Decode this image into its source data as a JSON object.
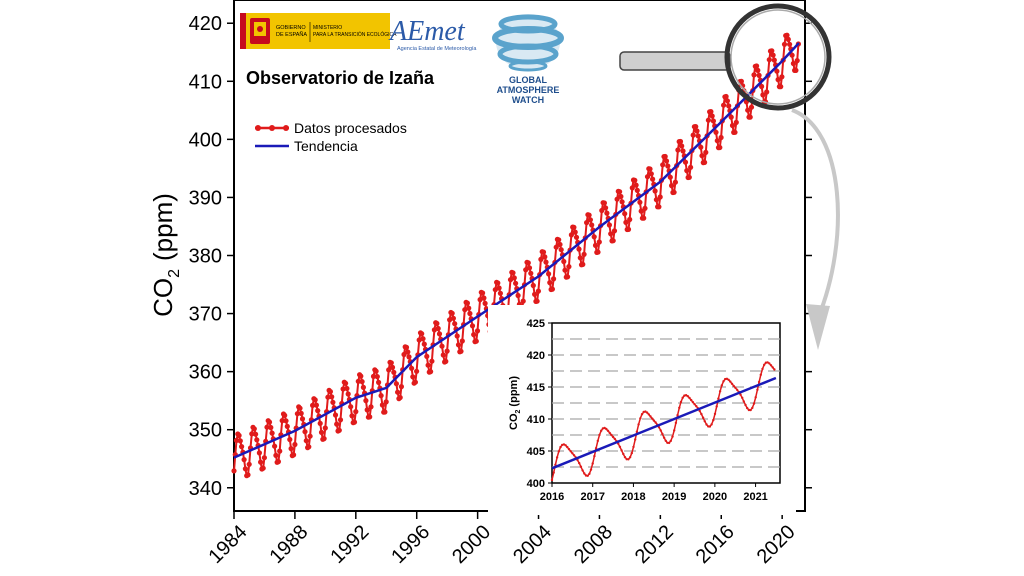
{
  "header": {
    "gov_line1": "GOBIERNO",
    "gov_line2": "DE ESPAÑA",
    "ministry_line1": "MINISTERIO",
    "ministry_line2": "PARA LA TRANSICIÓN ECOLÓGICA",
    "aemet_logo": "AEmet",
    "aemet_subtitle": "Agencia Estatal de Meteorología",
    "observatory": "Observatorio de Izaña",
    "gaw_line1": "GLOBAL",
    "gaw_line2": "ATMOSPHERE",
    "gaw_line3": "WATCH"
  },
  "colors": {
    "data": "#e01b1b",
    "trend": "#1a1ab8",
    "gov_yellow": "#f2c400",
    "grid": "#a8a8a8",
    "arrow": "#c8c8c8"
  },
  "chart_data": [
    {
      "type": "line",
      "title": "Observatorio de Izaña",
      "xlabel": "",
      "ylabel_main": "CO",
      "ylabel_sub": "2",
      "ylabel_units": "(ppm)",
      "xlim": [
        1984,
        2021.5
      ],
      "ylim": [
        336,
        424
      ],
      "xticks": [
        1984,
        1988,
        1992,
        1996,
        2000,
        2004,
        2008,
        2012,
        2016,
        2020
      ],
      "yticks": [
        340,
        350,
        360,
        370,
        380,
        390,
        400,
        410,
        420
      ],
      "legend_position": "top-left",
      "series": [
        {
          "name": "Datos procesados",
          "style": "line-markers",
          "x_start": 1984.0,
          "x_end": 2021.1,
          "x_step": 0.0833,
          "trend": [
            [
              1984,
              345.2
            ],
            [
              1988,
              349.8
            ],
            [
              1992,
              355.5
            ],
            [
              1994,
              357.2
            ],
            [
              1996,
              362.5
            ],
            [
              2000,
              369.5
            ],
            [
              2004,
              376.4
            ],
            [
              2008,
              384.9
            ],
            [
              2012,
              392.7
            ],
            [
              2016,
              403.0
            ],
            [
              2020,
              413.5
            ],
            [
              2021.1,
              416.6
            ]
          ],
          "seasonal_amplitude": 7.5
        },
        {
          "name": "Tendencia",
          "style": "line",
          "points": [
            [
              1984,
              345.2
            ],
            [
              1988,
              349.8
            ],
            [
              1992,
              355.5
            ],
            [
              1994,
              357.2
            ],
            [
              1996,
              362.5
            ],
            [
              2000,
              369.5
            ],
            [
              2004,
              376.4
            ],
            [
              2008,
              384.9
            ],
            [
              2012,
              392.7
            ],
            [
              2016,
              403.0
            ],
            [
              2020,
              413.5
            ],
            [
              2021.1,
              416.6
            ]
          ]
        }
      ]
    },
    {
      "type": "line",
      "title": "",
      "xlabel": "",
      "ylabel_main": "CO",
      "ylabel_sub": "2",
      "ylabel_units": "(ppm)",
      "xlim": [
        2016,
        2021.6
      ],
      "ylim": [
        400,
        425
      ],
      "xticks": [
        2016,
        2017,
        2018,
        2019,
        2020,
        2021
      ],
      "yticks": [
        400,
        405,
        410,
        415,
        420,
        425
      ],
      "grid": true,
      "series": [
        {
          "name": "Datos procesados",
          "x_start": 2016.0,
          "x_end": 2021.5,
          "x_step": 0.0417,
          "trend": [
            [
              2016,
              402.3
            ],
            [
              2021.5,
              416.4
            ]
          ],
          "seasonal_amplitude": 6.0
        },
        {
          "name": "Tendencia",
          "points": [
            [
              2016,
              402.3
            ],
            [
              2021.5,
              416.4
            ]
          ]
        }
      ]
    }
  ]
}
